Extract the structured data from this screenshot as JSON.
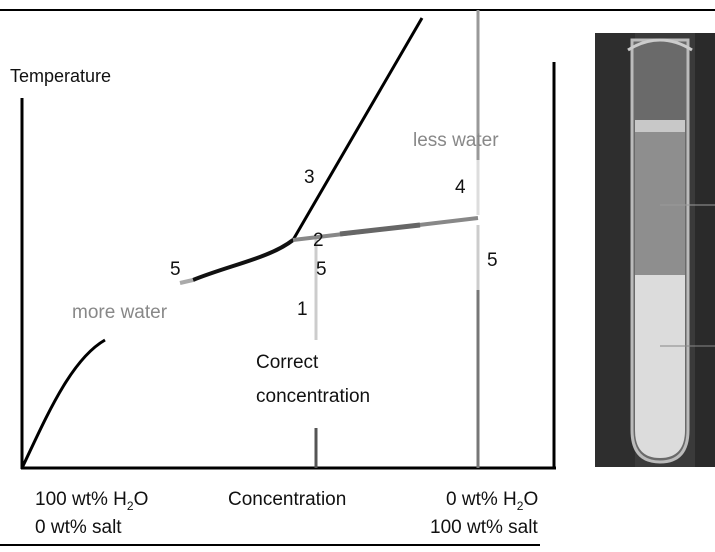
{
  "diagram": {
    "y_axis_label": "Temperature",
    "x_axis_label": "Concentration",
    "left_end": {
      "line1": [
        "100 wt% H",
        "2",
        "O"
      ],
      "line2": "0 wt% salt"
    },
    "right_end": {
      "line1": [
        "0 wt% H",
        "2",
        "O"
      ],
      "line2": "100 wt% salt"
    },
    "annotations": {
      "less_water": "less water",
      "more_water": "more water",
      "correct": [
        "Correct",
        "concentration"
      ]
    },
    "points": [
      "1",
      "2",
      "3",
      "4",
      "5",
      "5",
      "5"
    ]
  }
}
